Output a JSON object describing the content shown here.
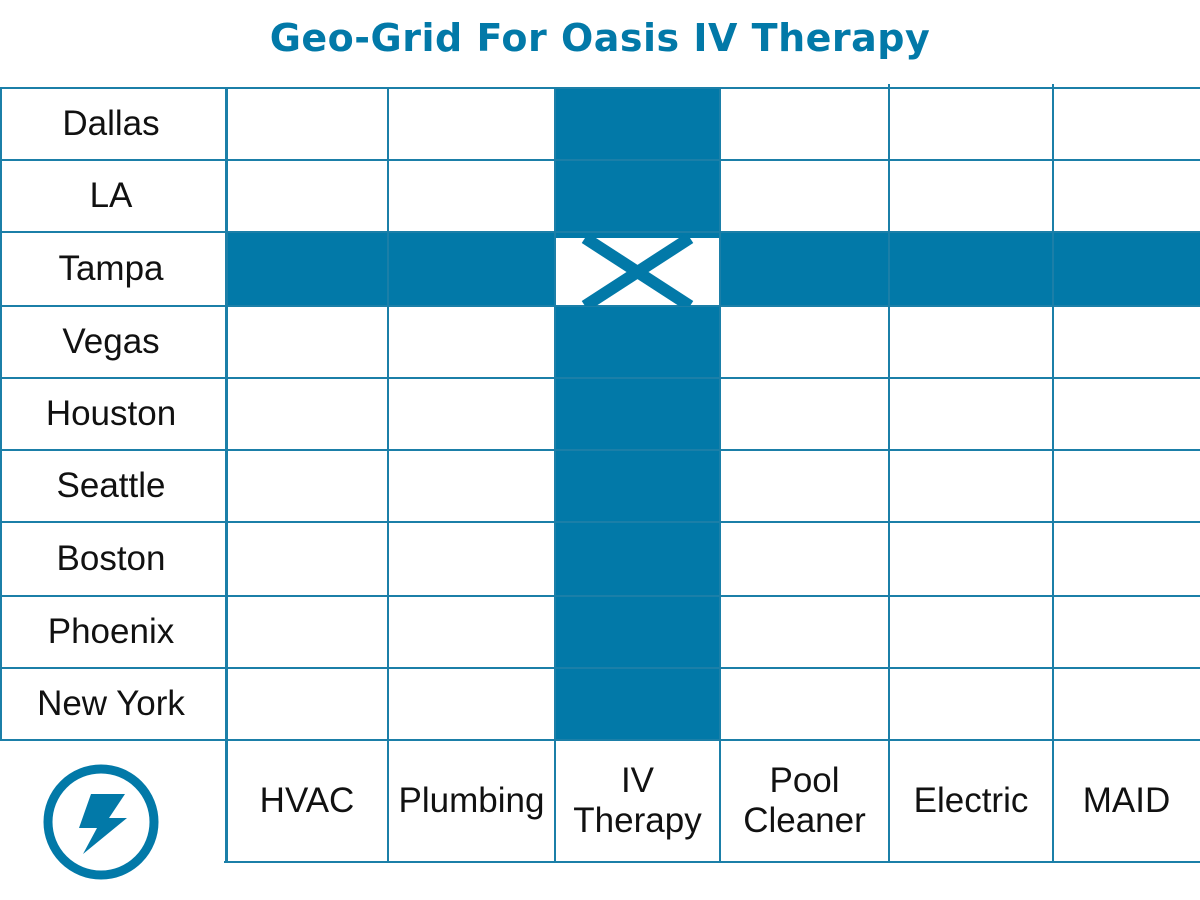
{
  "title": "Geo-Grid For Oasis IV Therapy",
  "accent_color": "#0279a8",
  "rows": [
    "Dallas",
    "LA",
    "Tampa",
    "Vegas",
    "Houston",
    "Seattle",
    "Boston",
    "Phoenix",
    "New York"
  ],
  "columns": [
    "HVAC",
    "Plumbing",
    "IV Therapy",
    "Pool Cleaner",
    "Electric",
    "MAID"
  ],
  "highlighted_row": "Tampa",
  "highlighted_column": "IV Therapy",
  "intersection_mark": "X",
  "logo_icon": "lightning-bolt-icon"
}
